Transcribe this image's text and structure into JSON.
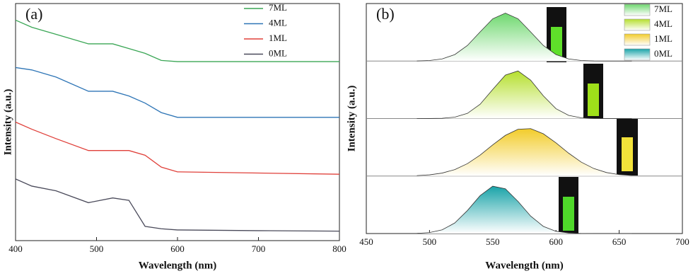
{
  "chart_data": [
    {
      "type": "line",
      "panel_label": "(a)",
      "x_label": "Wavelength (nm)",
      "y_label": "Intensity (a.u.)",
      "x": [
        400,
        420,
        450,
        490,
        520,
        540,
        560,
        580,
        600,
        700,
        800
      ],
      "xlim": [
        400,
        800
      ],
      "xticks": [
        400,
        500,
        600,
        700,
        800
      ],
      "ylim": [
        0,
        100
      ],
      "legend": "upper right",
      "series": [
        {
          "name": "7ML",
          "color": "#3aa655",
          "values": [
            93,
            90,
            87,
            83,
            83,
            81,
            79,
            76,
            75.5,
            75.5,
            75.5
          ]
        },
        {
          "name": "4ML",
          "color": "#2e75b6",
          "values": [
            73,
            72,
            69,
            63,
            63,
            61,
            58,
            54,
            52,
            52,
            52
          ]
        },
        {
          "name": "1ML",
          "color": "#e0403a",
          "values": [
            50,
            47,
            43,
            38,
            38,
            38,
            36,
            31,
            29,
            28.5,
            28
          ]
        },
        {
          "name": "0ML",
          "color": "#4a4a5a",
          "values": [
            26,
            23,
            21,
            16,
            18,
            17,
            6,
            5,
            4.5,
            4.2,
            4
          ]
        }
      ]
    },
    {
      "type": "area",
      "panel_label": "(b)",
      "x_label": "Wavelength (nm)",
      "y_label": "Intensity (a.u.)",
      "x": [
        490,
        500,
        510,
        520,
        530,
        540,
        550,
        560,
        570,
        580,
        590,
        600,
        610,
        620,
        630,
        640,
        650,
        660
      ],
      "xlim": [
        450,
        700
      ],
      "xticks": [
        450,
        500,
        550,
        600,
        650,
        700
      ],
      "ylim": [
        0,
        1.2
      ],
      "legend": "upper right",
      "series": [
        {
          "name": "7ML",
          "color": "#6fd86f",
          "values": [
            0.002,
            0.011,
            0.044,
            0.135,
            0.325,
            0.607,
            0.882,
            1,
            0.882,
            0.607,
            0.325,
            0.135,
            0.044,
            0.011,
            0.002,
            0,
            0,
            0
          ]
        },
        {
          "name": "4ML",
          "color": "#b5df2e",
          "values": [
            0,
            0.001,
            0.006,
            0.029,
            0.108,
            0.298,
            0.607,
            0.906,
            0.994,
            0.801,
            0.474,
            0.206,
            0.066,
            0.015,
            0.003,
            0,
            0,
            0
          ]
        },
        {
          "name": "1ML",
          "color": "#f2cc2a",
          "values": [
            0.009,
            0.025,
            0.062,
            0.135,
            0.259,
            0.437,
            0.65,
            0.849,
            0.977,
            0.99,
            0.882,
            0.693,
            0.478,
            0.291,
            0.156,
            0.073,
            0.03,
            0.011
          ]
        },
        {
          "name": "0ML",
          "color": "#19a3a8",
          "values": [
            0.004,
            0.02,
            0.077,
            0.221,
            0.481,
            0.791,
            0.988,
            0.934,
            0.67,
            0.364,
            0.15,
            0.047,
            0.011,
            0.002,
            0,
            0,
            0,
            0
          ]
        }
      ]
    }
  ]
}
